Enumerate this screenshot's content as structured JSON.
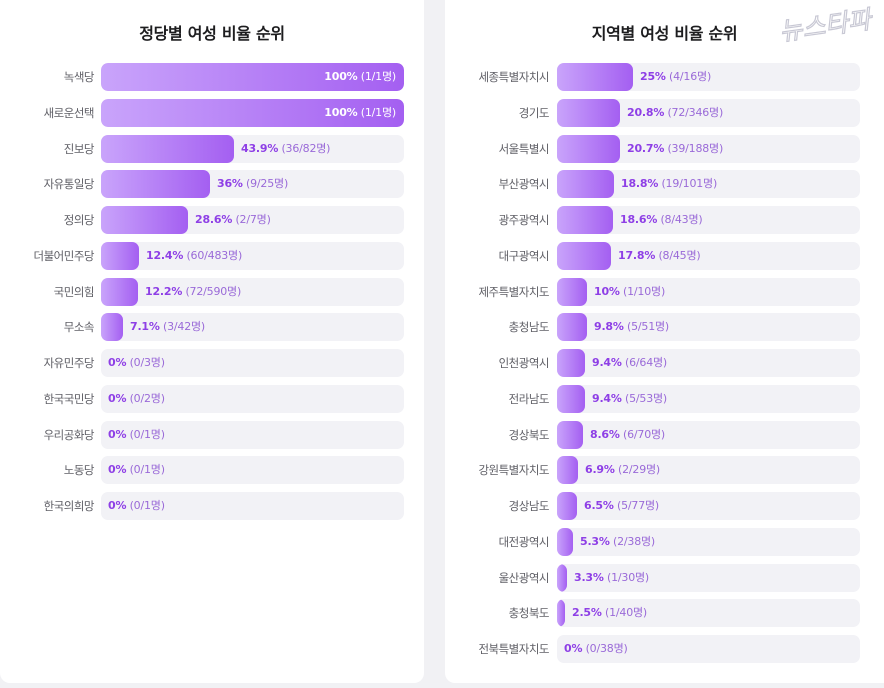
{
  "chart_data": [
    {
      "type": "bar",
      "orientation": "horizontal",
      "title": "정당별 여성 비율 순위",
      "xlim": [
        0,
        100
      ],
      "grid": false,
      "categories": [
        "녹색당",
        "새로운선택",
        "진보당",
        "자유통일당",
        "정의당",
        "더불어민주당",
        "국민의힘",
        "무소속",
        "자유민주당",
        "한국국민당",
        "우리공화당",
        "노동당",
        "한국의희망"
      ],
      "values": [
        100,
        100,
        43.9,
        36,
        28.6,
        12.4,
        12.2,
        7.1,
        0,
        0,
        0,
        0,
        0
      ],
      "value_labels": [
        "100%",
        "100%",
        "43.9%",
        "36%",
        "28.6%",
        "12.4%",
        "12.2%",
        "7.1%",
        "0%",
        "0%",
        "0%",
        "0%",
        "0%"
      ],
      "count_labels": [
        "(1/1명)",
        "(1/1명)",
        "(36/82명)",
        "(9/25명)",
        "(2/7명)",
        "(60/483명)",
        "(72/590명)",
        "(3/42명)",
        "(0/3명)",
        "(0/2명)",
        "(0/1명)",
        "(0/1명)",
        "(0/1명)"
      ]
    },
    {
      "type": "bar",
      "orientation": "horizontal",
      "title": "지역별 여성 비율 순위",
      "xlim": [
        0,
        100
      ],
      "grid": false,
      "categories": [
        "세종특별자치시",
        "경기도",
        "서울특별시",
        "부산광역시",
        "광주광역시",
        "대구광역시",
        "제주특별자치도",
        "충청남도",
        "인천광역시",
        "전라남도",
        "경상북도",
        "강원특별자치도",
        "경상남도",
        "대전광역시",
        "울산광역시",
        "충청북도",
        "전북특별자치도"
      ],
      "values": [
        25,
        20.8,
        20.7,
        18.8,
        18.6,
        17.8,
        10,
        9.8,
        9.4,
        9.4,
        8.6,
        6.9,
        6.5,
        5.3,
        3.3,
        2.5,
        0
      ],
      "value_labels": [
        "25%",
        "20.8%",
        "20.7%",
        "18.8%",
        "18.6%",
        "17.8%",
        "10%",
        "9.8%",
        "9.4%",
        "9.4%",
        "8.6%",
        "6.9%",
        "6.5%",
        "5.3%",
        "3.3%",
        "2.5%",
        "0%"
      ],
      "count_labels": [
        "(4/16명)",
        "(72/346명)",
        "(39/188명)",
        "(19/101명)",
        "(8/43명)",
        "(8/45명)",
        "(1/10명)",
        "(5/51명)",
        "(6/64명)",
        "(5/53명)",
        "(6/70명)",
        "(2/29명)",
        "(5/77명)",
        "(2/38명)",
        "(1/30명)",
        "(1/40명)",
        "(0/38명)"
      ]
    }
  ],
  "watermark": {
    "text": "뉴스타파",
    "color": "#c8c8d4"
  },
  "colors": {
    "bar_start": "#c9a4fb",
    "bar_end": "#a45ff1",
    "track": "#f2f2f6",
    "value_text": "#8e3fe6"
  }
}
